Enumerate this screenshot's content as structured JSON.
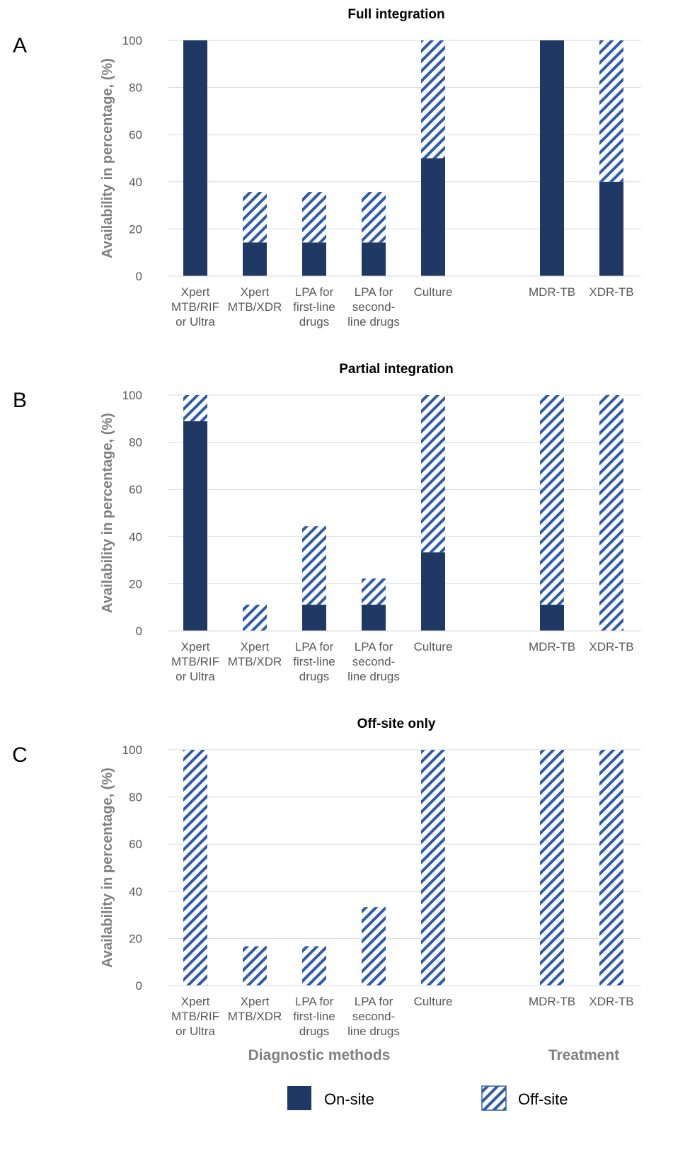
{
  "colors": {
    "on_site": "#1f3864",
    "off_site_stripe": "#2e5bab",
    "grid": "#d9d9d9",
    "axis_text": "#595959",
    "axis_title": "#808080",
    "title_text": "#000000"
  },
  "category_groups": [
    {
      "label": "Diagnostic methods",
      "categories": [
        "Xpert MTB/RIF or Ultra",
        "Xpert MTB/XDR",
        "LPA for first-line drugs",
        "LPA for second-line drugs",
        "Culture"
      ]
    },
    {
      "label": "Treatment",
      "categories": [
        "MDR-TB",
        "XDR-TB"
      ]
    }
  ],
  "legend": [
    {
      "key": "on_site",
      "label": "On-site",
      "pattern": "solid"
    },
    {
      "key": "off_site",
      "label": "Off-site",
      "pattern": "diagonal-stripes"
    }
  ],
  "chart_data": [
    {
      "type": "bar",
      "stacked": true,
      "panel_letter": "A",
      "title": "Full integration",
      "ylabel": "Availability in percentage, (%)",
      "ylim": [
        0,
        100
      ],
      "yticks": [
        0,
        20,
        40,
        60,
        80,
        100
      ],
      "grid": true,
      "categories": [
        "Xpert\nMTB/RIF\nor Ultra",
        "Xpert\nMTB/XDR",
        "LPA for\nfirst-line\ndrugs",
        "LPA for\nsecond-\nline drugs",
        "Culture",
        "",
        "MDR-TB",
        "XDR-TB"
      ],
      "series": [
        {
          "name": "On-site",
          "values": [
            100,
            14.3,
            14.3,
            14.3,
            50,
            null,
            100,
            40
          ]
        },
        {
          "name": "Off-site",
          "values": [
            0,
            21.4,
            21.4,
            21.4,
            50,
            null,
            0,
            60
          ]
        }
      ]
    },
    {
      "type": "bar",
      "stacked": true,
      "panel_letter": "B",
      "title": "Partial integration",
      "ylabel": "Availability in percentage, (%)",
      "ylim": [
        0,
        100
      ],
      "yticks": [
        0,
        20,
        40,
        60,
        80,
        100
      ],
      "grid": true,
      "categories": [
        "Xpert\nMTB/RIF\nor Ultra",
        "Xpert\nMTB/XDR",
        "LPA for\nfirst-line\ndrugs",
        "LPA for\nsecond-\nline drugs",
        "Culture",
        "",
        "MDR-TB",
        "XDR-TB"
      ],
      "series": [
        {
          "name": "On-site",
          "values": [
            88.9,
            0,
            11.1,
            11.1,
            33.3,
            null,
            11.1,
            0
          ]
        },
        {
          "name": "Off-site",
          "values": [
            11.1,
            11.1,
            33.3,
            11.1,
            66.7,
            null,
            88.9,
            100
          ]
        }
      ]
    },
    {
      "type": "bar",
      "stacked": true,
      "panel_letter": "C",
      "title": "Off-site only",
      "ylabel": "Availability in percentage, (%)",
      "ylim": [
        0,
        100
      ],
      "yticks": [
        0,
        20,
        40,
        60,
        80,
        100
      ],
      "grid": true,
      "categories": [
        "Xpert\nMTB/RIF\nor Ultra",
        "Xpert\nMTB/XDR",
        "LPA for\nfirst-line\ndrugs",
        "LPA for\nsecond-\nline drugs",
        "Culture",
        "",
        "MDR-TB",
        "XDR-TB"
      ],
      "series": [
        {
          "name": "On-site",
          "values": [
            0,
            0,
            0,
            0,
            0,
            null,
            0,
            0
          ]
        },
        {
          "name": "Off-site",
          "values": [
            100,
            16.7,
            16.7,
            33.3,
            100,
            null,
            100,
            100
          ]
        }
      ]
    }
  ]
}
